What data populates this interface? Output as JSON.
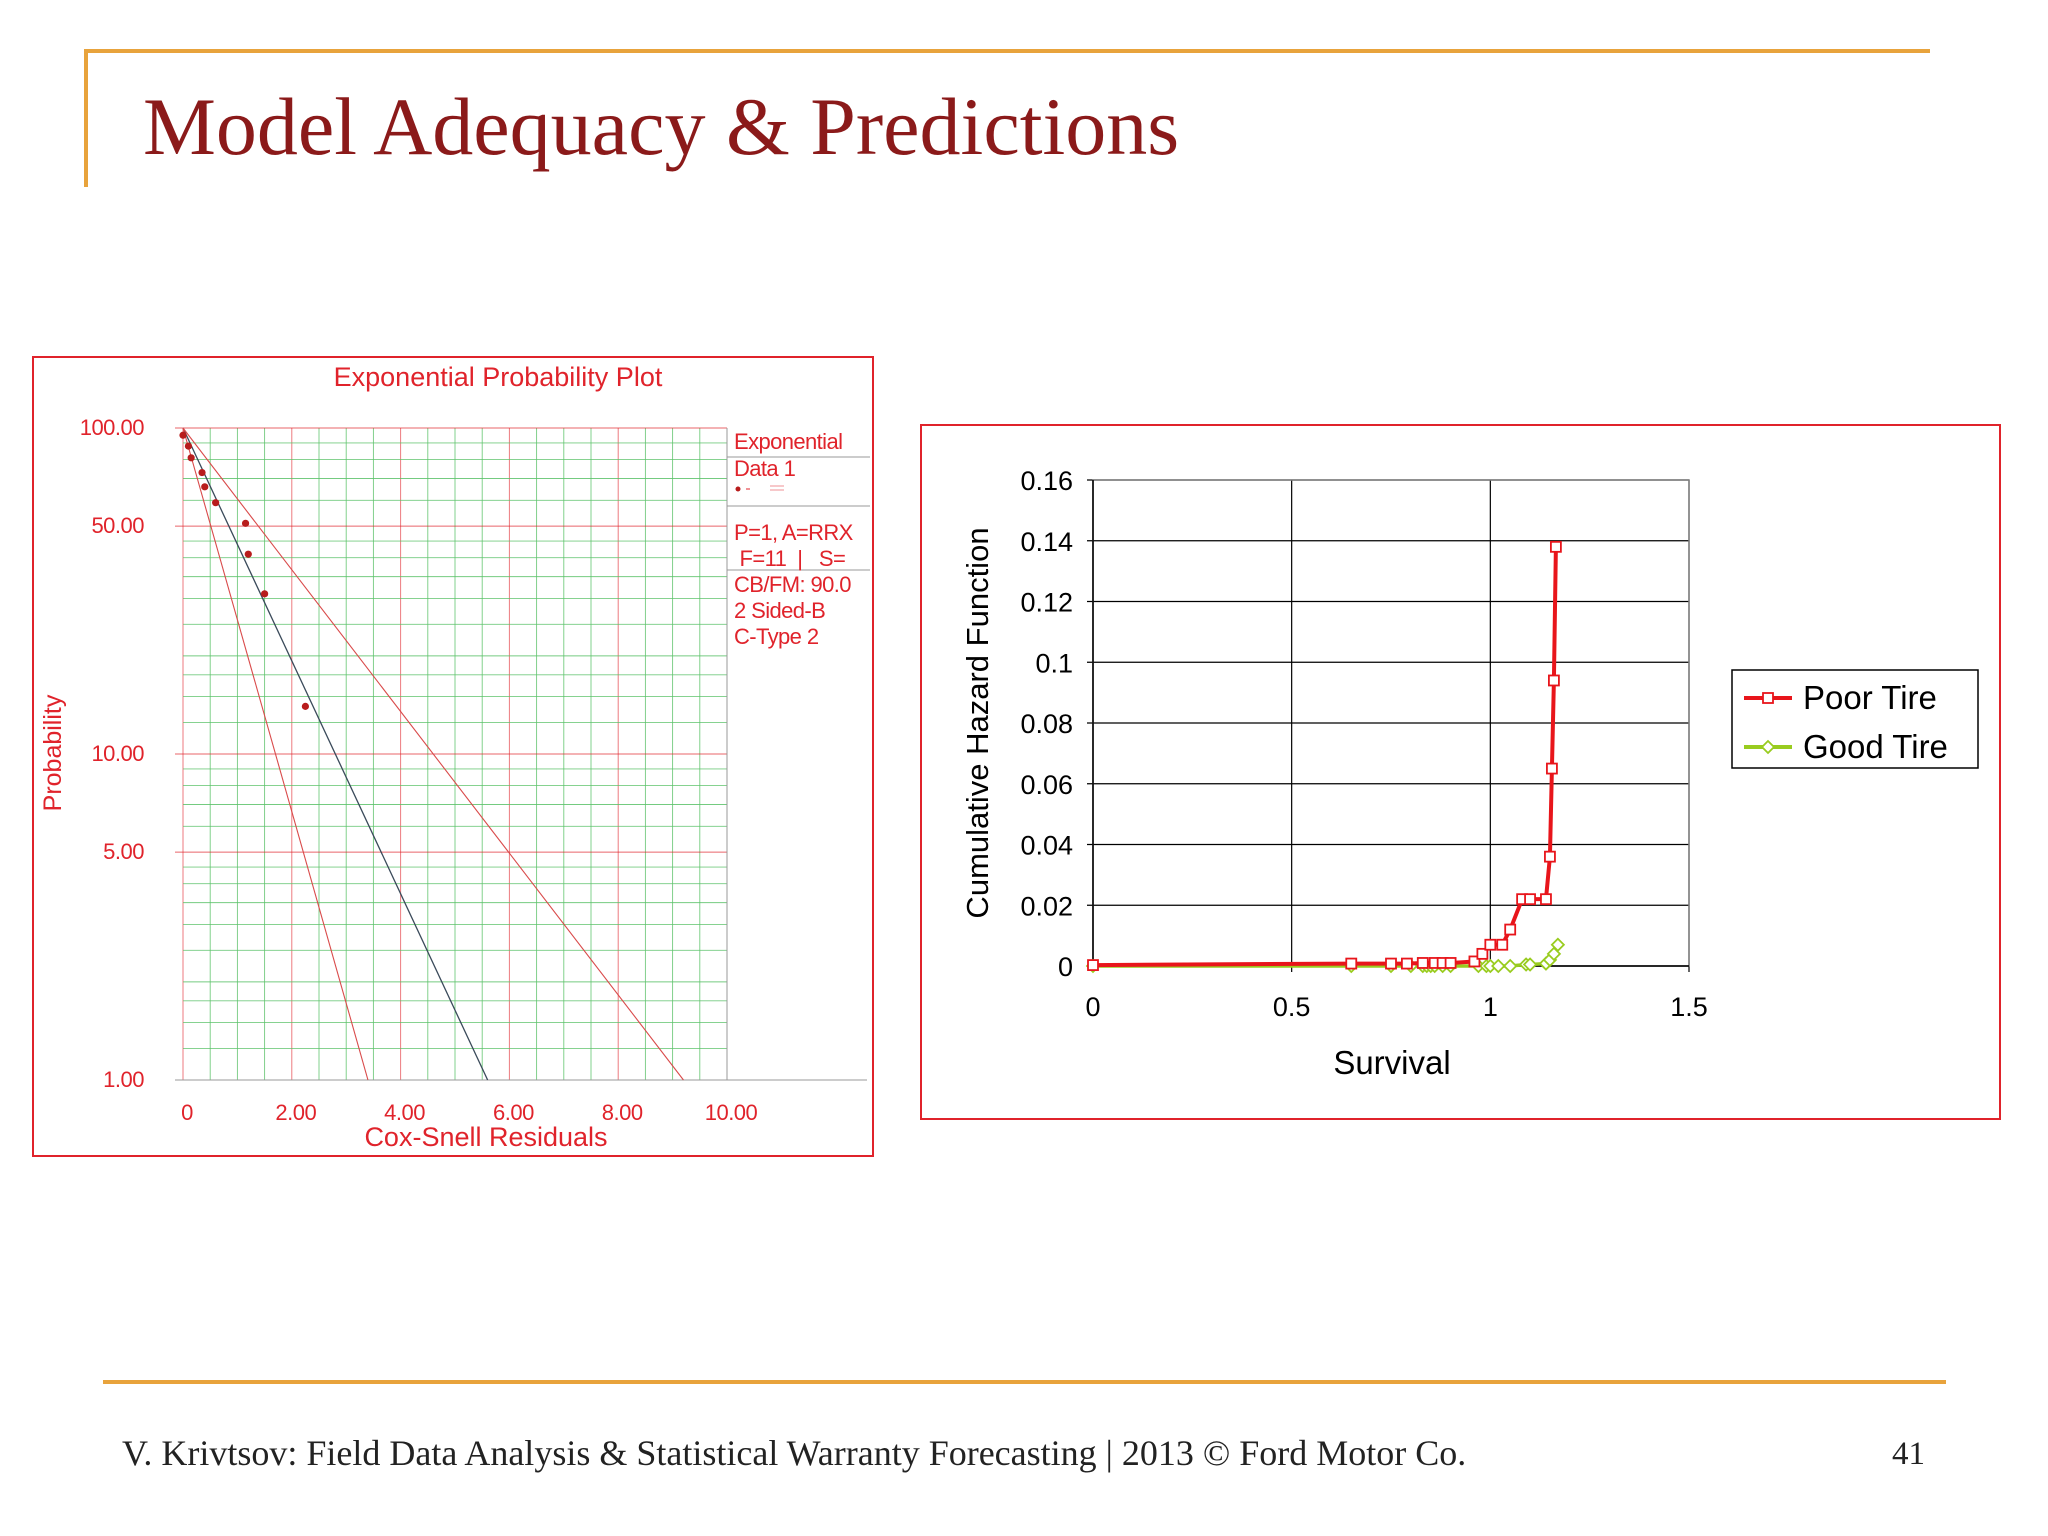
{
  "slide": {
    "title": "Model Adequacy & Predictions",
    "footer": "V. Krivtsov: Field Data Analysis & Statistical Warranty Forecasting |  2013 © Ford Motor Co.",
    "page_number": "41"
  },
  "colors": {
    "accent_rule": "#e8a33c",
    "title": "#8b1a1a",
    "panel_border": "#e0232b",
    "plot_red": "#e0232b",
    "grid_green": "#5cc26a",
    "poor_tire": "#e8151b",
    "good_tire": "#99cc1f"
  },
  "chart_data": [
    {
      "type": "scatter",
      "title": "Exponential Probability Plot",
      "xlabel": "Cox-Snell Residuals",
      "ylabel": "Probability",
      "x_ticks": [
        "0",
        "2.00",
        "4.00",
        "6.00",
        "8.00",
        "10.00"
      ],
      "y_ticks": [
        "100.00",
        "50.00",
        "10.00",
        "5.00",
        "1.00"
      ],
      "y_scale": "log",
      "xlim": [
        0,
        10
      ],
      "ylim": [
        1,
        100
      ],
      "grid": true,
      "legend": {
        "position": "right",
        "lines": [
          "Exponential",
          "Data 1",
          "P=1, A=RRX",
          " F=11  |   S=",
          "CB/FM: 90.0",
          "2 Sided-B",
          "C-Type 2"
        ]
      },
      "points": [
        {
          "x": 0.0,
          "y": 95
        },
        {
          "x": 0.1,
          "y": 88
        },
        {
          "x": 0.15,
          "y": 81
        },
        {
          "x": 0.35,
          "y": 73
        },
        {
          "x": 0.4,
          "y": 66
        },
        {
          "x": 0.6,
          "y": 59
        },
        {
          "x": 1.15,
          "y": 51
        },
        {
          "x": 1.2,
          "y": 41
        },
        {
          "x": 1.5,
          "y": 31
        },
        {
          "x": 2.25,
          "y": 14
        }
      ],
      "fit_lines": [
        {
          "role": "fit",
          "from": [
            0,
            100
          ],
          "to": [
            5.6,
            1
          ]
        },
        {
          "role": "lower-bound",
          "from": [
            0,
            100
          ],
          "to": [
            3.4,
            1
          ]
        },
        {
          "role": "upper-bound",
          "from": [
            0,
            100
          ],
          "to": [
            9.2,
            1
          ]
        }
      ]
    },
    {
      "type": "line",
      "xlabel": "Survival",
      "ylabel": "Cumulative Hazard Function",
      "x_ticks": [
        "0",
        "0.5",
        "1",
        "1.5"
      ],
      "y_ticks": [
        "0",
        "0.02",
        "0.04",
        "0.06",
        "0.08",
        "0.1",
        "0.12",
        "0.14",
        "0.16"
      ],
      "xlim": [
        0,
        1.5
      ],
      "ylim": [
        0,
        0.16
      ],
      "grid": true,
      "legend_position": "right",
      "series": [
        {
          "name": "Poor Tire",
          "marker": "square",
          "x": [
            0,
            0.65,
            0.75,
            0.79,
            0.83,
            0.86,
            0.88,
            0.9,
            0.96,
            0.98,
            1.0,
            1.03,
            1.05,
            1.08,
            1.1,
            1.14,
            1.15,
            1.155,
            1.16,
            1.165
          ],
          "y": [
            0.0003,
            0.0008,
            0.0008,
            0.0008,
            0.001,
            0.001,
            0.001,
            0.001,
            0.0015,
            0.004,
            0.007,
            0.007,
            0.012,
            0.022,
            0.022,
            0.022,
            0.036,
            0.065,
            0.094,
            0.138
          ]
        },
        {
          "name": "Good Tire",
          "marker": "diamond",
          "x": [
            0,
            0.65,
            0.75,
            0.8,
            0.83,
            0.84,
            0.85,
            0.86,
            0.88,
            0.9,
            0.97,
            0.99,
            1.0,
            1.02,
            1.05,
            1.09,
            1.1,
            1.14,
            1.15,
            1.16,
            1.17
          ],
          "y": [
            0,
            0,
            0,
            0,
            0,
            0,
            0,
            0,
            0,
            0,
            0,
            0,
            0,
            0,
            0,
            0.0005,
            0.0005,
            0.0008,
            0.002,
            0.004,
            0.007
          ]
        }
      ]
    }
  ]
}
